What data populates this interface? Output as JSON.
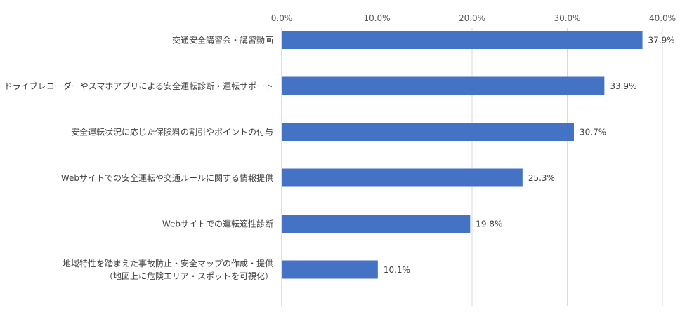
{
  "chart_data": {
    "type": "bar",
    "orientation": "horizontal",
    "categories": [
      "交通安全講習会・講習動画",
      "ドライブレコーダーやスマホアプリによる安全運転診断・運転サポート",
      "安全運転状況に応じた保険料の割引やポイントの付与",
      "Webサイトでの安全運転や交通ルールに関する情報提供",
      "Webサイトでの運転適性診断",
      "地域特性を踏まえた事故防止・安全マップの作成・提供\n（地図上に危険エリア・スポットを可視化）"
    ],
    "values": [
      37.9,
      33.9,
      30.7,
      25.3,
      19.8,
      10.1
    ],
    "value_labels": [
      "37.9%",
      "33.9%",
      "30.7%",
      "25.3%",
      "19.8%",
      "10.1%"
    ],
    "x_ticks": [
      "0.0%",
      "10.0%",
      "20.0%",
      "30.0%",
      "40.0%"
    ],
    "xlim": [
      0,
      40
    ],
    "title": "",
    "xlabel": "",
    "ylabel": "",
    "axis_position": "top",
    "grid": true,
    "bar_color": "#4472C4",
    "grid_color": "#d9d9d9"
  }
}
